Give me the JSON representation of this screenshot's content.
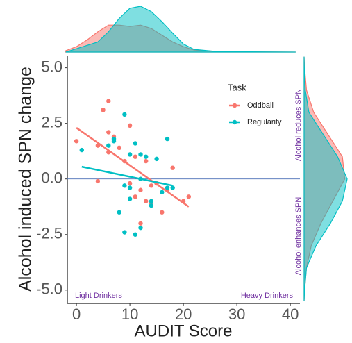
{
  "chart_data": {
    "type": "scatter",
    "x_label": "AUDIT Score",
    "y_label": "Alcohol induced SPN change",
    "xlim": [
      -1.7,
      41.8
    ],
    "ylim": [
      -5.6,
      5.55
    ],
    "xticks": [
      0,
      10,
      20,
      30,
      40
    ],
    "yticks": [
      {
        "value": 5,
        "label": "5.0"
      },
      {
        "value": 2.5,
        "label": "2.5"
      },
      {
        "value": 0,
        "label": "0.0"
      },
      {
        "value": -2.5,
        "label": "-2.5"
      },
      {
        "value": -5,
        "label": "-5.0"
      }
    ],
    "hline": 0,
    "legend_title": "Task",
    "series": [
      {
        "name": "Oddball",
        "color": "#f8766d",
        "x": [
          0,
          4,
          5,
          6,
          6,
          6,
          7,
          4,
          8,
          9,
          10,
          10,
          11,
          12,
          12,
          12,
          13,
          13,
          14,
          14,
          15,
          16,
          17,
          18,
          20,
          21,
          11
        ],
        "values": [
          1.7,
          1.5,
          3.1,
          3.5,
          2.1,
          1.2,
          1.9,
          -0.1,
          1.4,
          0.8,
          2.4,
          -0.2,
          1.0,
          0.0,
          -0.5,
          -2.0,
          -1.0,
          0.8,
          -0.3,
          -1.1,
          -0.2,
          -1.5,
          -0.5,
          0.5,
          -1.0,
          -0.8,
          -0.8
        ]
      },
      {
        "name": "Regularity",
        "color": "#00bfc4",
        "x": [
          1,
          6,
          7,
          7,
          9,
          10,
          11,
          8,
          9,
          10,
          10,
          9,
          11,
          12,
          12,
          13,
          14,
          14,
          15,
          16,
          17,
          17,
          18,
          12
        ],
        "values": [
          1.3,
          1.5,
          1.7,
          1.8,
          2.9,
          1.1,
          1.6,
          -1.5,
          -0.3,
          -0.4,
          -0.9,
          -2.4,
          -2.5,
          1.1,
          -2.2,
          1.0,
          -1.2,
          -1.0,
          0.9,
          -0.6,
          1.8,
          -0.4,
          -0.4,
          0.0
        ]
      }
    ],
    "fits": [
      {
        "color": "#f8766d",
        "x": [
          0,
          21
        ],
        "values": [
          2.3,
          -1.25
        ]
      },
      {
        "color": "#00bfc4",
        "x": [
          1,
          18
        ],
        "values": [
          0.55,
          -0.3
        ]
      }
    ],
    "marginal_x": [
      {
        "color": "#f8766d",
        "x": [
          -2,
          0,
          2,
          4,
          6,
          8,
          10,
          12,
          14,
          16,
          18,
          20,
          22,
          26,
          30,
          41
        ],
        "values": [
          0.002,
          0.008,
          0.018,
          0.03,
          0.04,
          0.04,
          0.038,
          0.04,
          0.035,
          0.025,
          0.015,
          0.008,
          0.003,
          0.001,
          0.0005,
          0
        ]
      },
      {
        "color": "#00bfc4",
        "x": [
          -2,
          0,
          2,
          4,
          6,
          8,
          10,
          12,
          14,
          16,
          18,
          20,
          22,
          26,
          30,
          41
        ],
        "values": [
          0,
          0.005,
          0.01,
          0.015,
          0.03,
          0.05,
          0.065,
          0.068,
          0.06,
          0.045,
          0.028,
          0.012,
          0.004,
          0.001,
          0.0005,
          0
        ]
      }
    ],
    "marginal_y": [
      {
        "color": "#f8766d",
        "y": [
          5.5,
          5,
          4,
          3,
          2,
          1,
          0,
          -1,
          -2,
          -3,
          -4,
          -5,
          -5.5
        ],
        "values": [
          0,
          0.002,
          0.01,
          0.04,
          0.1,
          0.16,
          0.17,
          0.12,
          0.07,
          0.03,
          0.01,
          0.002,
          0
        ]
      },
      {
        "color": "#00bfc4",
        "y": [
          5.5,
          5,
          4,
          3,
          2,
          1,
          0,
          -1,
          -2,
          -3,
          -4,
          -5,
          -5.5
        ],
        "values": [
          0,
          0.001,
          0.005,
          0.02,
          0.08,
          0.14,
          0.18,
          0.16,
          0.11,
          0.05,
          0.01,
          0.002,
          0
        ]
      }
    ],
    "annotations": [
      "Light Drinkers",
      "Heavy Drinkers",
      "Alcohol reduces SPN",
      "Alcohol enhances SPN"
    ]
  }
}
